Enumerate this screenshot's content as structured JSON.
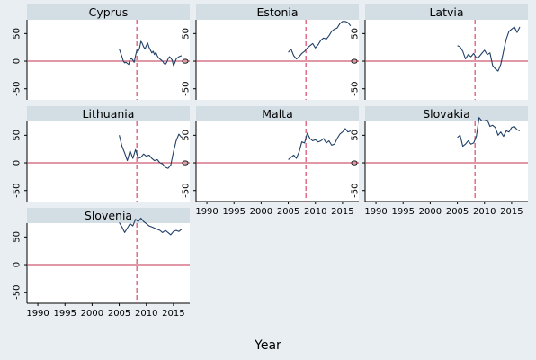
{
  "chart_data": {
    "type": "line",
    "layout": "small-multiples",
    "xlabel": "Year",
    "ylabel": "",
    "xlim": [
      1988,
      2018
    ],
    "ylim": [
      -70,
      75
    ],
    "xticks": [
      1990,
      1995,
      2000,
      2005,
      2010,
      2015
    ],
    "yticks": [
      50,
      0,
      -50
    ],
    "reference_lines": {
      "horizontal_y": 0,
      "horizontal_color": "#c0304e",
      "vertical_x": 2008.25,
      "vertical_color": "#d84a6a",
      "vertical_style": "dashed"
    },
    "line_color": "#1f3f66",
    "grid": false,
    "panels": [
      {
        "title": "Cyprus",
        "x": [
          2005,
          2005.25,
          2005.5,
          2005.75,
          2006,
          2006.25,
          2006.5,
          2006.75,
          2007,
          2007.25,
          2007.5,
          2007.75,
          2008,
          2008.25,
          2008.5,
          2008.75,
          2009,
          2009.25,
          2009.5,
          2009.75,
          2010,
          2010.25,
          2010.5,
          2010.75,
          2011,
          2011.25,
          2011.5,
          2011.75,
          2012,
          2012.25,
          2012.5,
          2012.75,
          2013,
          2013.25,
          2013.5,
          2013.75,
          2014,
          2014.25,
          2014.5,
          2014.75,
          2015,
          2015.25,
          2015.5,
          2015.75,
          2016,
          2016.25,
          2016.5
        ],
        "y": [
          22,
          15,
          8,
          0,
          -3,
          -2,
          -4,
          -6,
          3,
          5,
          2,
          -2,
          10,
          20,
          18,
          24,
          36,
          32,
          26,
          22,
          28,
          33,
          25,
          20,
          15,
          18,
          12,
          16,
          10,
          6,
          4,
          2,
          0,
          -4,
          -6,
          -2,
          4,
          8,
          6,
          2,
          -8,
          -3,
          4,
          6,
          8,
          9,
          10
        ]
      },
      {
        "title": "Estonia",
        "x": [
          2005,
          2005.5,
          2006,
          2006.5,
          2007,
          2007.5,
          2008,
          2008.5,
          2009,
          2009.5,
          2010,
          2010.5,
          2011,
          2011.5,
          2012,
          2012.5,
          2013,
          2013.5,
          2014,
          2014.5,
          2015,
          2015.5,
          2016,
          2016.5
        ],
        "y": [
          16,
          22,
          10,
          4,
          8,
          14,
          18,
          24,
          28,
          32,
          24,
          30,
          38,
          42,
          40,
          46,
          54,
          58,
          60,
          68,
          72,
          72,
          70,
          64
        ]
      },
      {
        "title": "Latvia",
        "x": [
          2005,
          2005.5,
          2006,
          2006.5,
          2007,
          2007.5,
          2008,
          2008.5,
          2009,
          2009.5,
          2010,
          2010.5,
          2011,
          2011.5,
          2012,
          2012.5,
          2013,
          2013.5,
          2014,
          2014.5,
          2015,
          2015.5,
          2016,
          2016.5
        ],
        "y": [
          28,
          26,
          18,
          4,
          12,
          8,
          14,
          6,
          8,
          14,
          20,
          12,
          15,
          -8,
          -14,
          -18,
          -6,
          18,
          40,
          54,
          58,
          62,
          52,
          62
        ]
      },
      {
        "title": "Lithuania",
        "x": [
          2005,
          2005.5,
          2006,
          2006.5,
          2007,
          2007.5,
          2008,
          2008.5,
          2009,
          2009.5,
          2010,
          2010.5,
          2011,
          2011.5,
          2012,
          2012.5,
          2013,
          2013.5,
          2014,
          2014.5,
          2015,
          2015.5,
          2016,
          2016.5
        ],
        "y": [
          50,
          30,
          18,
          4,
          22,
          8,
          24,
          8,
          10,
          16,
          12,
          14,
          8,
          4,
          6,
          0,
          -2,
          -8,
          -10,
          -4,
          20,
          40,
          52,
          46
        ]
      },
      {
        "title": "Malta",
        "x": [
          2005,
          2005.5,
          2006,
          2006.5,
          2007,
          2007.5,
          2008,
          2008.5,
          2009,
          2009.5,
          2010,
          2010.5,
          2011,
          2011.5,
          2012,
          2012.5,
          2013,
          2013.5,
          2014,
          2014.5,
          2015,
          2015.5,
          2016,
          2016.5
        ],
        "y": [
          6,
          10,
          14,
          8,
          20,
          38,
          36,
          54,
          44,
          40,
          42,
          38,
          40,
          44,
          36,
          40,
          32,
          34,
          44,
          52,
          56,
          62,
          56,
          58
        ]
      },
      {
        "title": "Slovakia",
        "x": [
          2005,
          2005.5,
          2006,
          2006.5,
          2007,
          2007.5,
          2008,
          2008.5,
          2009,
          2009.5,
          2010,
          2010.5,
          2011,
          2011.5,
          2012,
          2012.5,
          2013,
          2013.5,
          2014,
          2014.5,
          2015,
          2015.5,
          2016,
          2016.5
        ],
        "y": [
          46,
          50,
          30,
          34,
          40,
          34,
          36,
          48,
          82,
          76,
          76,
          78,
          66,
          68,
          64,
          50,
          56,
          48,
          58,
          56,
          64,
          66,
          60,
          58
        ]
      },
      {
        "title": "Slovenia",
        "x": [
          2005,
          2005.5,
          2006,
          2006.5,
          2007,
          2007.5,
          2008,
          2008.5,
          2009,
          2009.5,
          2010,
          2010.5,
          2011,
          2011.5,
          2012,
          2012.5,
          2013,
          2013.5,
          2014,
          2014.5,
          2015,
          2015.5,
          2016,
          2016.5
        ],
        "y": [
          76,
          68,
          58,
          66,
          74,
          70,
          82,
          78,
          84,
          78,
          74,
          70,
          68,
          66,
          64,
          62,
          58,
          62,
          58,
          54,
          60,
          62,
          60,
          64
        ]
      }
    ]
  }
}
